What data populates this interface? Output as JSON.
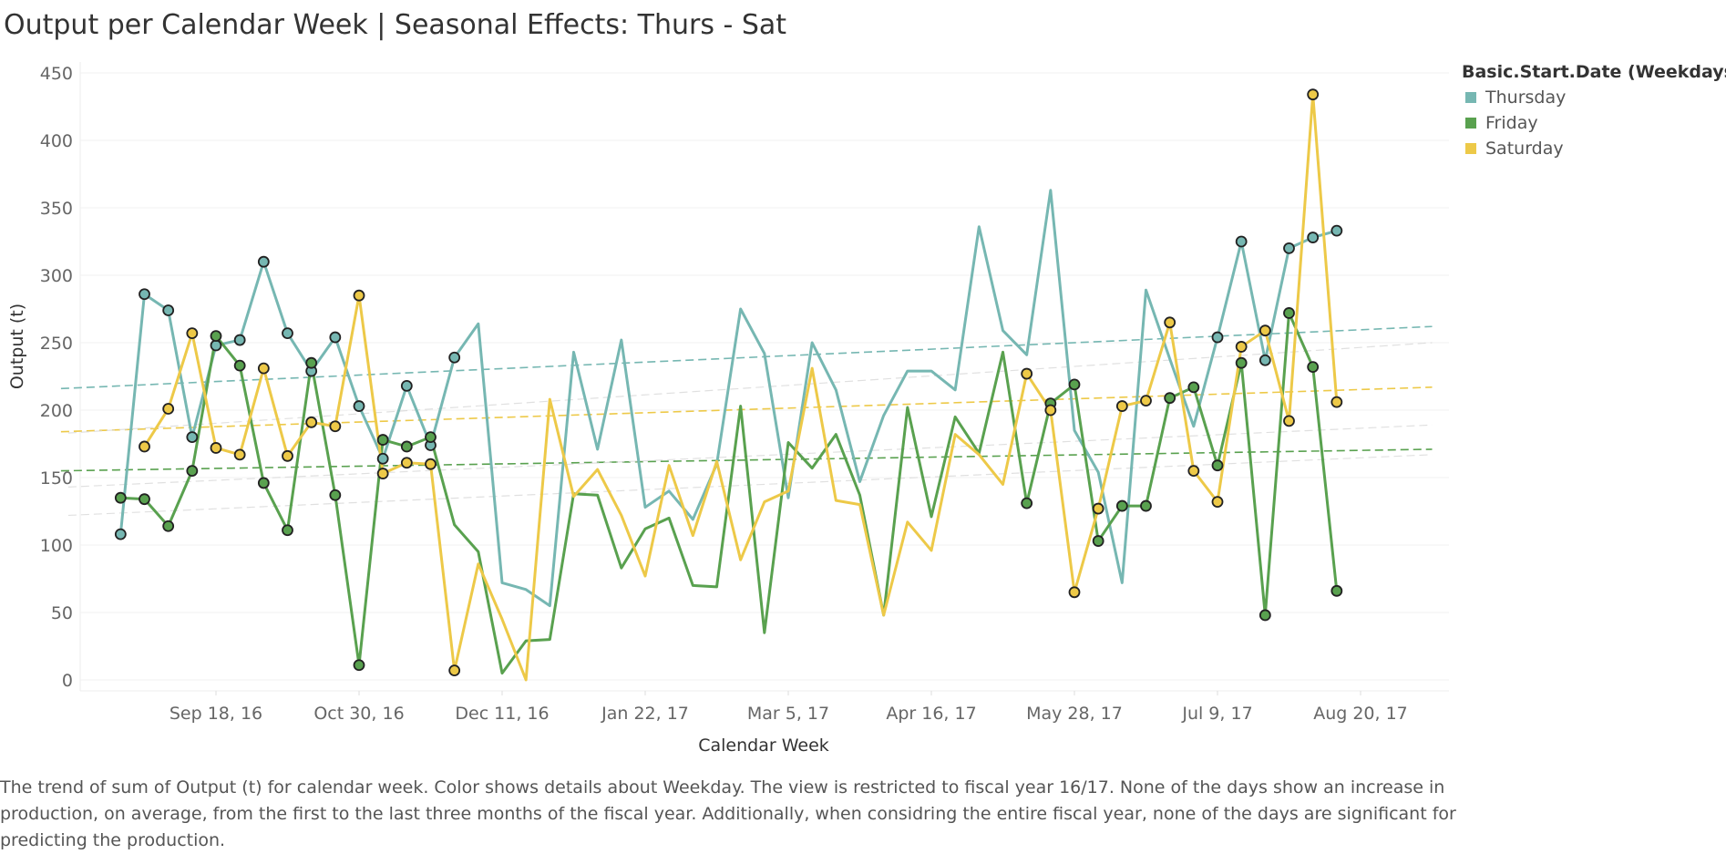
{
  "chart_data": {
    "type": "line",
    "title": "Output per Calendar Week | Seasonal Effects: Thurs - Sat",
    "xlabel": "Calendar Week",
    "ylabel": "Output (t)",
    "ylim": [
      0,
      450
    ],
    "yticks": [
      0,
      50,
      100,
      150,
      200,
      250,
      300,
      350,
      400,
      450
    ],
    "x_tick_labels": [
      "Sep 18, 16",
      "Oct 30, 16",
      "Dec 11, 16",
      "Jan 22, 17",
      "Mar 5, 17",
      "Apr 16, 17",
      "May 28, 17",
      "Jul 9, 17",
      "Aug 20, 17"
    ],
    "x_tick_weeks": [
      4,
      10,
      16,
      22,
      28,
      34,
      40,
      46,
      52
    ],
    "x_range_weeks": [
      -2.5,
      55
    ],
    "grid": "horizontal",
    "legend": {
      "title": "Basic.Start.Date (Weekdays)",
      "position": "right"
    },
    "series": [
      {
        "name": "Thursday",
        "color": "#76b7b2",
        "marked_weeks": [
          0,
          1,
          2,
          3,
          4,
          5,
          6,
          7,
          8,
          9,
          10,
          11,
          12,
          13,
          14,
          46,
          47,
          48,
          49,
          50,
          51,
          52,
          53,
          54,
          55,
          56,
          57
        ],
        "values": [
          108,
          286,
          274,
          180,
          248,
          252,
          310,
          257,
          229,
          254,
          203,
          164,
          218,
          174,
          239,
          264,
          72,
          67,
          55,
          243,
          171,
          252,
          128,
          140,
          119,
          160,
          275,
          242,
          135,
          250,
          215,
          147,
          196,
          229,
          229,
          215,
          336,
          259,
          241,
          363,
          185,
          154,
          72,
          289,
          238,
          188,
          254,
          325,
          237,
          320,
          328,
          333
        ]
      },
      {
        "name": "Friday",
        "color": "#59a14f",
        "values": [
          135,
          134,
          114,
          155,
          255,
          233,
          146,
          111,
          235,
          137,
          11,
          178,
          173,
          180,
          115,
          95,
          5,
          29,
          30,
          138,
          137,
          83,
          112,
          120,
          70,
          69,
          203,
          35,
          176,
          157,
          182,
          137,
          48,
          202,
          121,
          195,
          168,
          243,
          131,
          205,
          219,
          103,
          129,
          129,
          209,
          217,
          159,
          235,
          48,
          272,
          232,
          66
        ]
      },
      {
        "name": "Saturday",
        "color": "#edc948",
        "values": [
          173,
          201,
          257,
          172,
          167,
          231,
          166,
          191,
          188,
          285,
          153,
          161,
          160,
          7,
          86,
          45,
          0,
          208,
          136,
          156,
          122,
          77,
          159,
          107,
          162,
          89,
          132,
          140,
          231,
          133,
          130,
          48,
          117,
          96,
          182,
          167,
          145,
          227,
          200,
          65,
          127,
          203,
          207,
          265,
          155,
          132,
          247,
          259,
          192,
          434,
          206
        ]
      }
    ],
    "trend_lines": [
      {
        "name": "Thursday",
        "color": "#76b7b2",
        "y_start": 216,
        "y_end": 262
      },
      {
        "name": "Friday",
        "color": "#59a14f",
        "y_start": 155,
        "y_end": 171
      },
      {
        "name": "Saturday",
        "color": "#edc948",
        "y_start": 184,
        "y_end": 217
      }
    ]
  },
  "caption": "The trend of sum of Output (t) for calendar week.  Color shows details about Weekday. The view is restricted to fiscal year 16/17. None of the days show an increase in production, on average, from the first to the last three months of the fiscal year. Additionally, when considring the entire fiscal year, none of the days are significant for predicting the production."
}
